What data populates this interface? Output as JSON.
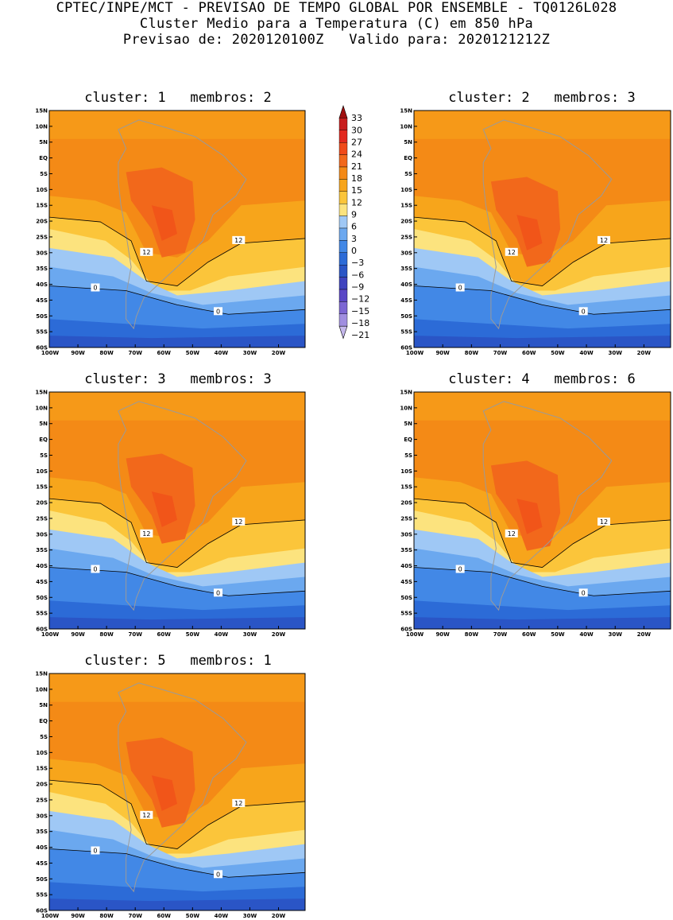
{
  "header": {
    "line1": "CPTEC/INPE/MCT - PREVISAO DE TEMPO GLOBAL POR ENSEMBLE - TQ0126L028",
    "line2": "Cluster Medio para a Temperatura (C) em 850 hPa",
    "line3": "Previsao de: 2020120100Z   Valido para: 2020121212Z"
  },
  "lat_ticks": [
    "15N",
    "10N",
    "5N",
    "EQ",
    "5S",
    "10S",
    "15S",
    "20S",
    "25S",
    "30S",
    "35S",
    "40S",
    "45S",
    "50S",
    "55S",
    "60S"
  ],
  "lon_ticks": [
    "100W",
    "90W",
    "80W",
    "70W",
    "60W",
    "50W",
    "40W",
    "30W",
    "20W"
  ],
  "colorbar": {
    "levels": [
      "33",
      "30",
      "27",
      "24",
      "21",
      "18",
      "15",
      "12",
      "9",
      "6",
      "3",
      "0",
      "-3",
      "-6",
      "-9",
      "-12",
      "-15",
      "-18",
      "-21"
    ],
    "colors": [
      "#a00f0f",
      "#c81d1d",
      "#e2281e",
      "#f04a19",
      "#f2681b",
      "#f48a16",
      "#f7a51b",
      "#fbc53a",
      "#fce37e",
      "#9fc8f5",
      "#6ba8ef",
      "#4288e6",
      "#2c6bd7",
      "#2a55c6",
      "#3f43bf",
      "#5a47c6",
      "#7c66d3",
      "#a08ee0",
      "#c5b8ec"
    ]
  },
  "panels": [
    {
      "title": "cluster: 1   membros: 2",
      "labels": {
        "a": "12",
        "b": "12",
        "c": "0",
        "d": "0"
      }
    },
    {
      "title": "cluster: 2   membros: 3",
      "labels": {
        "a": "12",
        "b": "12",
        "c": "0",
        "d": "0"
      }
    },
    {
      "title": "cluster: 3   membros: 3",
      "labels": {
        "a": "12",
        "b": "12",
        "c": "0",
        "d": "0"
      }
    },
    {
      "title": "cluster: 4   membros: 6",
      "labels": {
        "a": "12",
        "b": "12",
        "c": "0",
        "d": "0"
      }
    },
    {
      "title": "cluster: 5   membros: 1",
      "labels": {
        "a": "12",
        "b": "12",
        "c": "0",
        "d": "0"
      }
    }
  ]
}
